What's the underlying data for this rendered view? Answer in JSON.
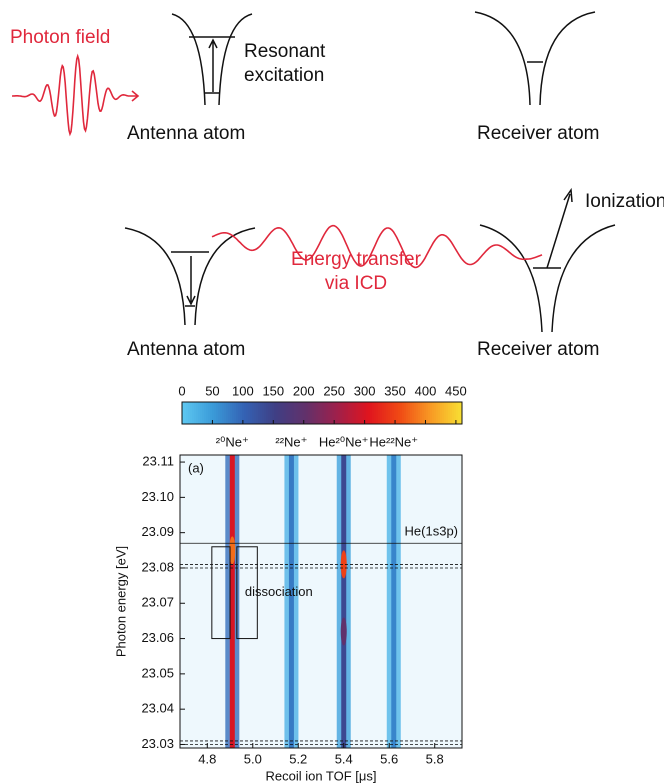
{
  "diagram": {
    "photon_field": "Photon field",
    "resonant": [
      "Resonant",
      "excitation"
    ],
    "antenna_top": "Antenna atom",
    "receiver_top": "Receiver atom",
    "ionization": "Ionization",
    "energy_transfer": [
      "Energy transfer",
      "via ICD"
    ],
    "antenna_bottom": "Antenna atom",
    "receiver_bottom": "Receiver atom"
  },
  "chart_data": {
    "type": "heatmap",
    "panel": "(a)",
    "xlabel": "Recoil ion TOF [μs]",
    "ylabel": "Photon energy [eV]",
    "xlim": [
      4.68,
      5.92
    ],
    "ylim": [
      23.029,
      23.112
    ],
    "xticks": [
      4.8,
      {
        "value": 5,
        "label": "5.0"
      },
      5.2,
      5.4,
      5.6,
      5.8
    ],
    "yticks": [
      23.03,
      23.04,
      23.05,
      23.06,
      23.07,
      23.08,
      23.09,
      {
        "value": 23.1,
        "label": "23.10"
      },
      23.11
    ],
    "clim": [
      0,
      460
    ],
    "cticks": [
      0,
      50,
      100,
      150,
      200,
      250,
      300,
      350,
      400,
      450
    ],
    "colormap": [
      "#5ec8f2",
      "#3a9ad8",
      "#3462b4",
      "#3f3f84",
      "#63306a",
      "#a0204a",
      "#e0141e",
      "#f04a14",
      "#f89a24",
      "#f8e034"
    ],
    "peaks": [
      {
        "x": 4.91,
        "label": "²⁰Ne⁺",
        "intensity": 300
      },
      {
        "x": 5.17,
        "label": "²²Ne⁺",
        "intensity": 80
      },
      {
        "x": 5.4,
        "label": "He²⁰Ne⁺",
        "intensity": 140
      },
      {
        "x": 5.62,
        "label": "He²²Ne⁺",
        "intensity": 70
      }
    ],
    "hotspots": [
      {
        "x": 5.4,
        "y": 23.081,
        "intensity": 350
      },
      {
        "x": 5.4,
        "y": 23.062,
        "intensity": 200
      },
      {
        "x": 4.91,
        "y": 23.085,
        "intensity": 380
      }
    ],
    "lines": [
      {
        "y": 23.087,
        "style": "solid",
        "label": "He(1s3p)"
      },
      {
        "y": 23.081,
        "style": "dashed"
      },
      {
        "y": 23.08,
        "style": "dashed"
      },
      {
        "y": 23.031,
        "style": "dashed"
      },
      {
        "y": 23.03,
        "style": "dashed"
      }
    ],
    "boxes": [
      {
        "x": [
          4.82,
          4.9
        ],
        "y": [
          23.06,
          23.086
        ]
      },
      {
        "x": [
          4.93,
          5.02
        ],
        "y": [
          23.06,
          23.086
        ]
      }
    ],
    "box_label": "dissociation"
  }
}
